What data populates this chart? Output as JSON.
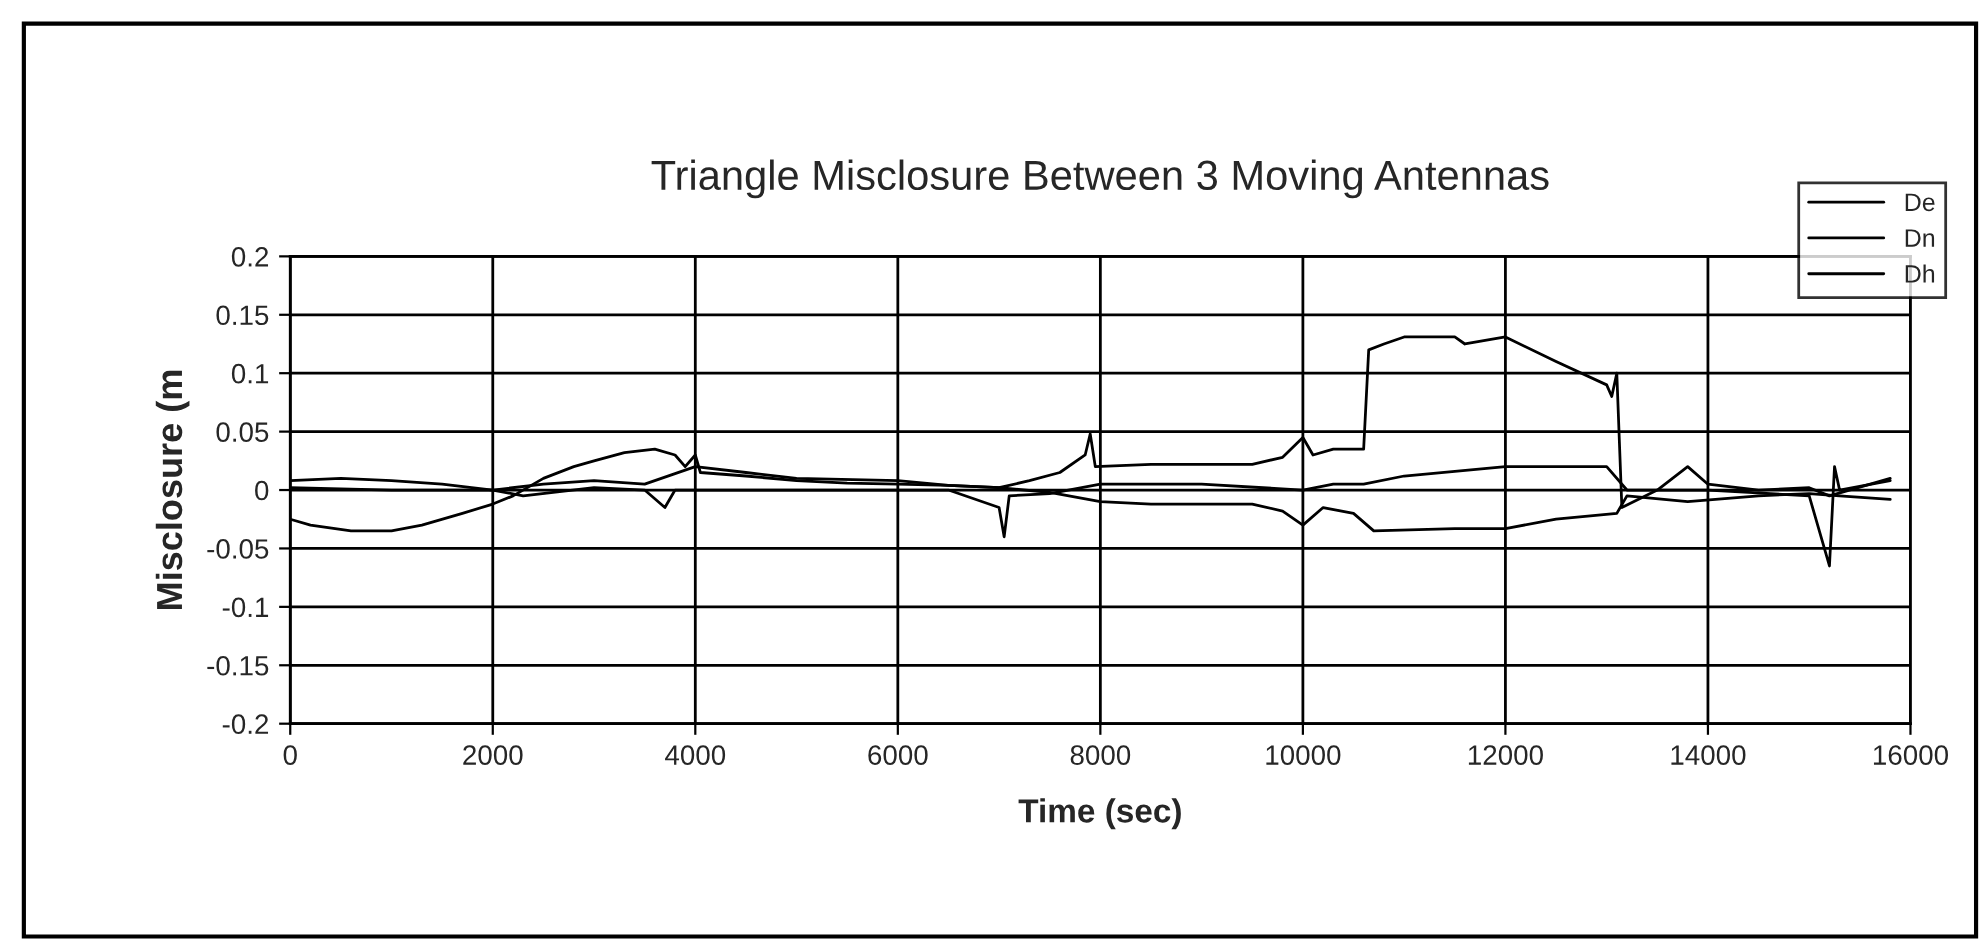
{
  "chart_data": {
    "type": "line",
    "title": "Triangle Misclosure Between 3 Moving Antennas",
    "xlabel": "Time (sec)",
    "ylabel": "Misclosure (m",
    "xlim": [
      0,
      16000
    ],
    "xticks": [
      0,
      2000,
      4000,
      6000,
      8000,
      10000,
      12000,
      14000,
      16000
    ],
    "ylim": [
      -0.2,
      0.2
    ],
    "yticks": [
      -0.2,
      -0.15,
      -0.1,
      -0.05,
      0,
      0.05,
      0.1,
      0.15,
      0.2
    ],
    "grid": true,
    "legend": "top right",
    "marker": "none",
    "line_style": "solid",
    "series": [
      {
        "name": "De",
        "color": "#000000",
        "x": [
          0,
          200,
          600,
          1000,
          1300,
          1700,
          2000,
          2200,
          2500,
          2800,
          3000,
          3300,
          3600,
          3800,
          3900,
          4000,
          4050,
          4500,
          5000,
          5500,
          6000,
          6500,
          7000,
          7300,
          7600,
          7850,
          7900,
          7950,
          8500,
          9500,
          9800,
          10000,
          10100,
          10300,
          10600,
          10650,
          10800,
          11000,
          11500,
          11600,
          12000,
          12500,
          13000,
          13050,
          13100,
          13150,
          13500,
          13800,
          14000,
          14500,
          15000,
          15200,
          15800
        ],
        "values": [
          -0.025,
          -0.03,
          -0.035,
          -0.035,
          -0.03,
          -0.02,
          -0.012,
          -0.005,
          0.01,
          0.02,
          0.025,
          0.032,
          0.035,
          0.03,
          0.02,
          0.03,
          0.015,
          0.012,
          0.008,
          0.006,
          0.005,
          0.004,
          0.002,
          0.008,
          0.015,
          0.03,
          0.048,
          0.02,
          0.022,
          0.022,
          0.028,
          0.045,
          0.03,
          0.035,
          0.035,
          0.12,
          0.125,
          0.131,
          0.131,
          0.125,
          0.131,
          0.11,
          0.09,
          0.08,
          0.1,
          -0.015,
          0.0,
          0.02,
          0.005,
          0.0,
          0.002,
          -0.005,
          0.01
        ]
      },
      {
        "name": "Dn",
        "color": "#000000",
        "x": [
          0,
          500,
          1000,
          1500,
          2000,
          2500,
          3000,
          3500,
          4000,
          4500,
          5000,
          6000,
          6500,
          7000,
          7500,
          8000,
          8500,
          9500,
          9800,
          10000,
          10200,
          10500,
          10700,
          11500,
          12000,
          12500,
          13100,
          13200,
          13800,
          14500,
          15000,
          15300,
          15800
        ],
        "values": [
          0.008,
          0.01,
          0.008,
          0.005,
          0.0,
          0.005,
          0.008,
          0.005,
          0.02,
          0.015,
          0.01,
          0.008,
          0.004,
          0.002,
          -0.002,
          -0.01,
          -0.012,
          -0.012,
          -0.018,
          -0.03,
          -0.015,
          -0.02,
          -0.035,
          -0.033,
          -0.033,
          -0.025,
          -0.02,
          -0.005,
          -0.01,
          -0.005,
          -0.003,
          -0.005,
          -0.008
        ]
      },
      {
        "name": "Dh",
        "color": "#000000",
        "x": [
          0,
          1000,
          2000,
          2300,
          3000,
          3500,
          3700,
          3800,
          4000,
          5000,
          6000,
          6500,
          7000,
          7050,
          7100,
          7500,
          8000,
          9000,
          10000,
          10300,
          10600,
          11000,
          12000,
          13000,
          13200,
          14000,
          15000,
          15200,
          15250,
          15300,
          15800
        ],
        "values": [
          0.002,
          0.0,
          0.0,
          -0.005,
          0.002,
          0.0,
          -0.015,
          0.0,
          0.0,
          0.0,
          0.0,
          0.0,
          -0.015,
          -0.04,
          -0.005,
          -0.003,
          0.005,
          0.005,
          0.0,
          0.005,
          0.005,
          0.012,
          0.02,
          0.02,
          0.0,
          0.0,
          -0.005,
          -0.065,
          0.02,
          0.0,
          0.008
        ]
      }
    ]
  }
}
